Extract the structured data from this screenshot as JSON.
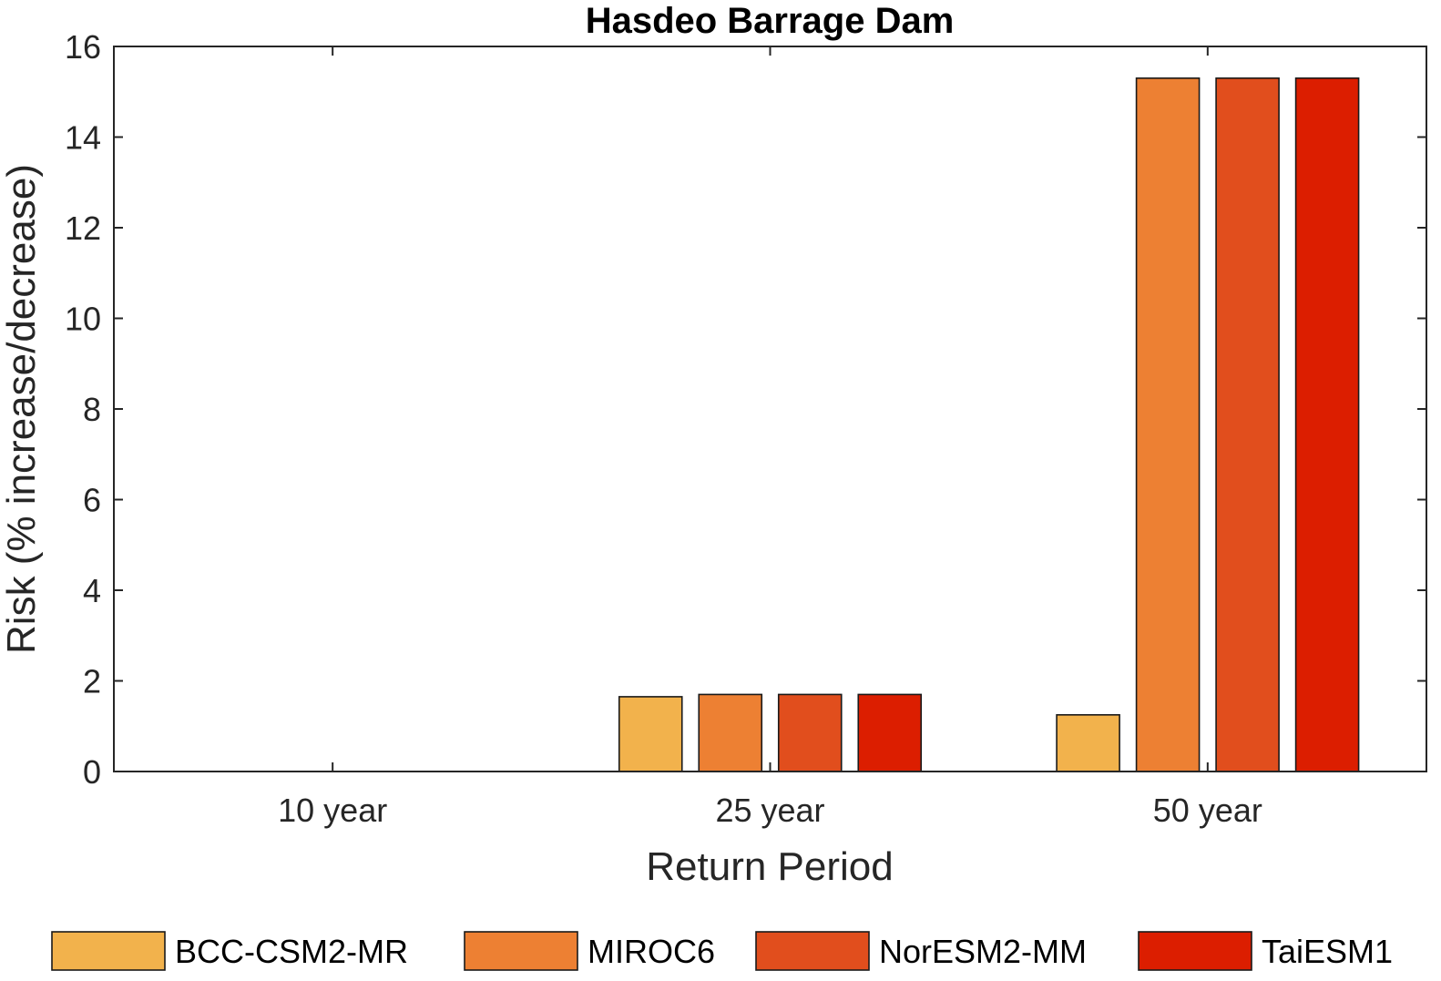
{
  "chart_data": {
    "type": "bar",
    "title": "Hasdeo Barrage Dam",
    "xlabel": "Return Period",
    "ylabel": "Risk (% increase/decrease)",
    "categories": [
      "10 year",
      "25 year",
      "50 year"
    ],
    "ylim": [
      0,
      16
    ],
    "yticks": [
      0,
      2,
      4,
      6,
      8,
      10,
      12,
      14,
      16
    ],
    "grid": false,
    "legend_position": "bottom",
    "series": [
      {
        "name": "BCC-CSM2-MR",
        "color": "#F2B24C",
        "values": [
          0,
          1.65,
          1.25
        ]
      },
      {
        "name": "MIROC6",
        "color": "#ED8033",
        "values": [
          0,
          1.7,
          15.3
        ]
      },
      {
        "name": "NorESM2-MM",
        "color": "#E14E1D",
        "values": [
          0,
          1.7,
          15.3
        ]
      },
      {
        "name": "TaiESM1",
        "color": "#DC1E00",
        "values": [
          0,
          1.7,
          15.3
        ]
      }
    ]
  }
}
